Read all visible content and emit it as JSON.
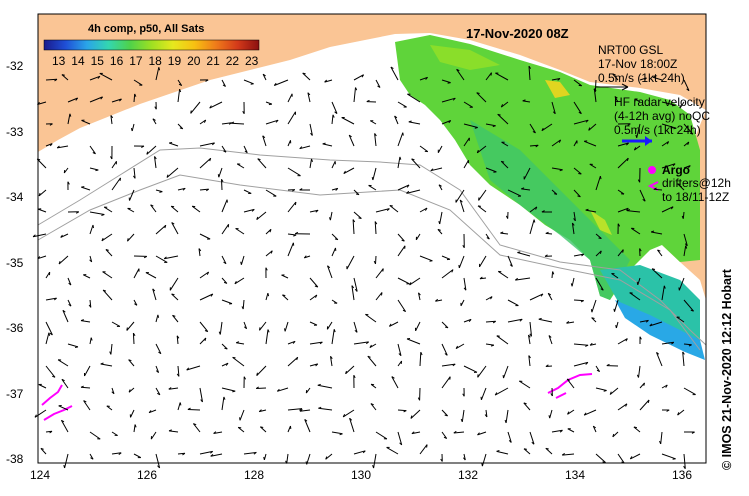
{
  "map": {
    "date_title": "17-Nov-2020 08Z",
    "colorbar": {
      "title": "4h comp, p50, All Sats",
      "ticks": [
        "13",
        "14",
        "15",
        "16",
        "17",
        "18",
        "19",
        "20",
        "21",
        "22",
        "23"
      ],
      "stops": [
        "#1a1a8c",
        "#1f4fd6",
        "#2aa5e8",
        "#33d6b0",
        "#4fd24a",
        "#9ee022",
        "#e6e81e",
        "#f7c012",
        "#ef7b1a",
        "#d43a1a",
        "#8a1010"
      ]
    },
    "legend": {
      "nrt_line1": "NRT00 GSL",
      "nrt_line2": "17-Nov 18:00Z",
      "nrt_line3": "0.5m/s (1kt 24h)",
      "hf_line1": "HF radar velocity",
      "hf_line2": "(4-12h avg) noQC",
      "hf_line3": "0.5m/s (1kt 24h)",
      "argo": "Argo",
      "drift_line1": "drifters@12h",
      "drift_line2": "to 18/11-12Z"
    },
    "credit": "© IMOS 21-Nov-2020 12:12 Hobart",
    "x_ticks": [
      "124",
      "126",
      "128",
      "130",
      "132",
      "134",
      "136"
    ],
    "y_ticks": [
      "-32",
      "-33",
      "-34",
      "-35",
      "-36",
      "-37",
      "-38"
    ],
    "colors": {
      "land": "#fac595",
      "hf_arrow": "#1a1aff",
      "argo": "#ff00ff"
    }
  }
}
